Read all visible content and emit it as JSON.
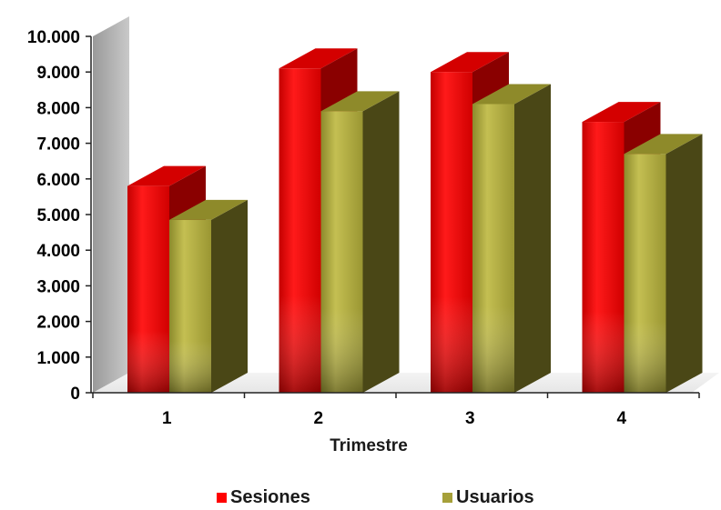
{
  "chart_data": {
    "type": "bar",
    "title": "",
    "xlabel": "Trimestre",
    "ylabel": "",
    "categories": [
      "1",
      "2",
      "3",
      "4"
    ],
    "ylim": [
      0,
      10000
    ],
    "yticks": [
      0,
      1000,
      2000,
      3000,
      4000,
      5000,
      6000,
      7000,
      8000,
      9000,
      10000
    ],
    "ytick_labels": [
      "0",
      "1.000",
      "2.000",
      "3.000",
      "4.000",
      "5.000",
      "6.000",
      "7.000",
      "8.000",
      "9.000",
      "10.000"
    ],
    "series": [
      {
        "name": "Sesiones",
        "values": [
          5800,
          9100,
          9000,
          7600
        ],
        "color": "#ff0000"
      },
      {
        "name": "Usuarios",
        "values": [
          4850,
          7900,
          8100,
          6700
        ],
        "color": "#a6a03a"
      }
    ],
    "grid": false,
    "legend": "bottom",
    "style": "3d"
  }
}
